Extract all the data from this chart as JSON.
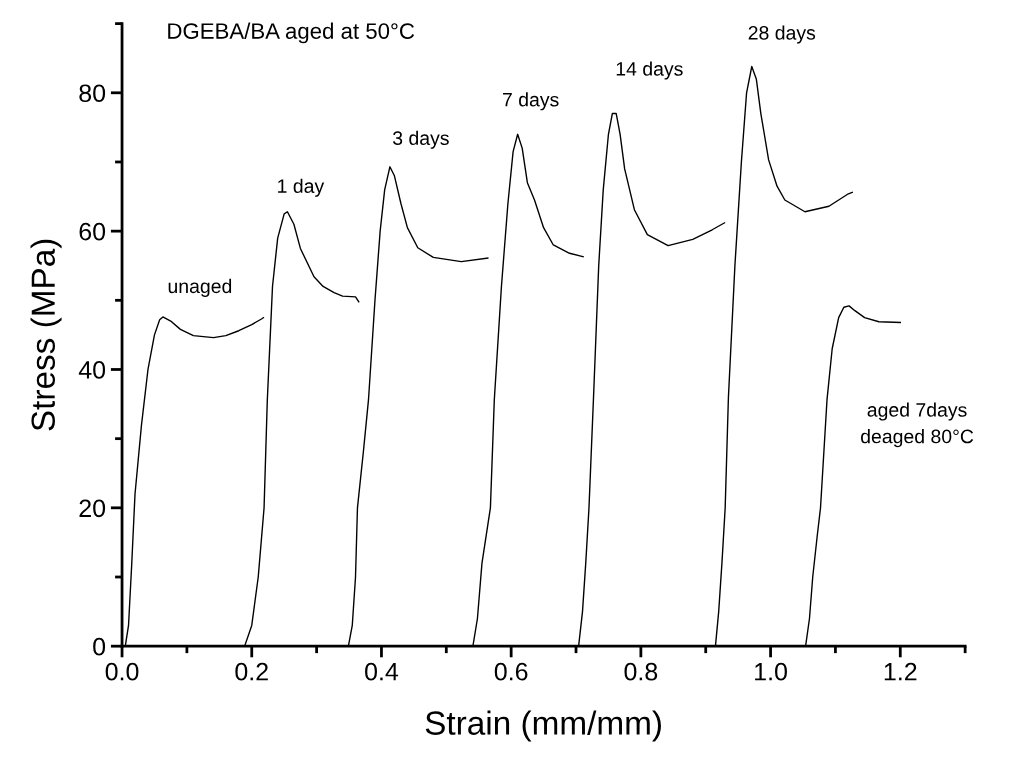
{
  "chart_data": {
    "type": "line",
    "title": "DGEBA/BA aged at 50°C",
    "xlabel": "Strain (mm/mm)",
    "ylabel": "Stress (MPa)",
    "xlim": [
      0,
      1.3
    ],
    "xticks": [
      {
        "value": 0,
        "label": "0.0"
      },
      0.2,
      0.4,
      0.6,
      0.8,
      {
        "value": 1.0,
        "label": "1.0"
      },
      1.2
    ],
    "ylim": [
      0,
      90
    ],
    "yticks": [
      0,
      20,
      40,
      60,
      80
    ],
    "grid": false,
    "marker": "none",
    "line_style": "solid",
    "series": [
      {
        "name": "unaged",
        "color": "#000000",
        "x": [
          0.005,
          0.01,
          0.015,
          0.02,
          0.03,
          0.04,
          0.05,
          0.058,
          0.063,
          0.075,
          0.09,
          0.11,
          0.141,
          0.16,
          0.18,
          0.2,
          0.215,
          0.218
        ],
        "values": [
          0,
          3,
          12,
          22,
          32,
          40,
          45,
          47.2,
          47.6,
          47,
          45.8,
          44.9,
          44.6,
          44.9,
          45.6,
          46.5,
          47.3,
          47.5
        ]
      },
      {
        "name": "1 day",
        "color": "#000000",
        "x": [
          0.189,
          0.2,
          0.21,
          0.219,
          0.224,
          0.232,
          0.24,
          0.25,
          0.255,
          0.265,
          0.275,
          0.296,
          0.31,
          0.327,
          0.34,
          0.36,
          0.365
        ],
        "values": [
          0,
          3,
          10,
          20,
          35.6,
          52,
          59,
          62.5,
          62.8,
          61,
          57.5,
          53.4,
          52,
          51.1,
          50.6,
          50.5,
          49.8
        ]
      },
      {
        "name": "3 days",
        "color": "#000000",
        "x": [
          0.349,
          0.355,
          0.36,
          0.363,
          0.372,
          0.38,
          0.39,
          0.398,
          0.405,
          0.413,
          0.42,
          0.43,
          0.44,
          0.456,
          0.48,
          0.523,
          0.564
        ],
        "values": [
          0,
          3,
          10,
          20,
          28,
          35.6,
          50,
          60,
          66,
          69.3,
          68,
          64,
          60.5,
          57.6,
          56.2,
          55.6,
          56.1
        ]
      },
      {
        "name": "7 days",
        "color": "#000000",
        "x": [
          0.541,
          0.548,
          0.555,
          0.568,
          0.574,
          0.585,
          0.595,
          0.603,
          0.61,
          0.617,
          0.625,
          0.636,
          0.65,
          0.665,
          0.69,
          0.711
        ],
        "values": [
          0,
          4,
          12,
          20,
          35.6,
          52,
          64,
          71.5,
          74,
          72,
          67,
          64.5,
          60.5,
          58,
          56.8,
          56.3
        ]
      },
      {
        "name": "14 days",
        "color": "#000000",
        "x": [
          0.704,
          0.71,
          0.715,
          0.72,
          0.727,
          0.735,
          0.742,
          0.75,
          0.756,
          0.762,
          0.768,
          0.775,
          0.79,
          0.81,
          0.842,
          0.88,
          0.91,
          0.929
        ],
        "values": [
          0,
          5,
          12,
          20,
          36,
          55,
          66,
          74,
          77,
          77,
          74,
          69,
          63.1,
          59.5,
          57.9,
          58.8,
          60.2,
          61.2
        ]
      },
      {
        "name": "28 days",
        "color": "#000000",
        "x": [
          0.915,
          0.92,
          0.925,
          0.93,
          0.935,
          0.945,
          0.955,
          0.963,
          0.971,
          0.978,
          0.985,
          0.997,
          1.01,
          1.022,
          1.053,
          1.09,
          1.12,
          1.126
        ],
        "values": [
          0,
          5,
          12,
          20,
          36,
          55,
          70,
          80,
          83.8,
          82,
          77,
          70.3,
          66.5,
          64.5,
          62.8,
          63.6,
          65.4,
          65.6
        ]
      },
      {
        "name": "aged 7days\ndeaged 80°C",
        "color": "#000000",
        "x": [
          1.054,
          1.06,
          1.065,
          1.072,
          1.077,
          1.087,
          1.095,
          1.105,
          1.113,
          1.121,
          1.13,
          1.145,
          1.167,
          1.2
        ],
        "values": [
          0,
          4,
          10,
          16,
          20,
          35.6,
          43,
          47.5,
          49,
          49.2,
          48.5,
          47.5,
          46.9,
          46.8
        ]
      }
    ]
  }
}
